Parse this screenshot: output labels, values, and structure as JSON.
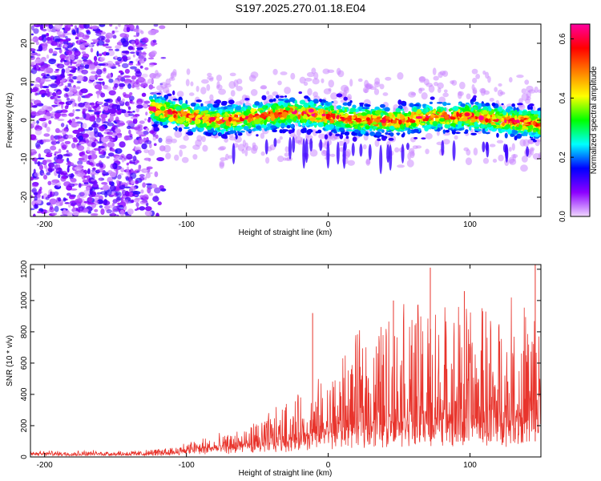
{
  "title": "S197.2025.270.01.18.E04",
  "chart_data": [
    {
      "type": "heatmap",
      "name": "spectrogram",
      "xlabel": "Height of straight line (km)",
      "ylabel": "Frequency (Hz)",
      "xlim": [
        -210,
        150
      ],
      "ylim": [
        -25,
        25
      ],
      "xticks": [
        -200,
        -100,
        0,
        100
      ],
      "yticks": [
        -20,
        -10,
        0,
        10,
        20
      ],
      "colorbar": {
        "label": "Normalized spectral amplitude",
        "range": [
          0.0,
          0.65
        ],
        "ticks": [
          0.0,
          0.2,
          0.4,
          0.6
        ],
        "colors": [
          "#f0d8ff",
          "#8c00ff",
          "#0000ff",
          "#00ffff",
          "#00ff00",
          "#ffff00",
          "#ff8000",
          "#ff0000",
          "#ff00a0"
        ]
      },
      "noise_region_km": [
        -210,
        -125
      ],
      "signal_band": {
        "start_km": -125,
        "center_hz": [
          {
            "x": -125,
            "y": 3
          },
          {
            "x": -100,
            "y": 1
          },
          {
            "x": -75,
            "y": 0
          },
          {
            "x": -50,
            "y": 1
          },
          {
            "x": -25,
            "y": 2
          },
          {
            "x": 0,
            "y": 1
          },
          {
            "x": 25,
            "y": 0
          },
          {
            "x": 50,
            "y": 0
          },
          {
            "x": 75,
            "y": 1
          },
          {
            "x": 100,
            "y": 1
          },
          {
            "x": 125,
            "y": 0
          },
          {
            "x": 150,
            "y": -1
          }
        ],
        "half_width_hz": 6
      },
      "peaks": [
        {
          "x": -12,
          "y": 2.5,
          "value": 0.65
        },
        {
          "x": 98,
          "y": 1.5,
          "value": 0.6
        }
      ]
    },
    {
      "type": "line",
      "name": "snr",
      "xlabel": "Height of straight line (km)",
      "ylabel": "SNR (10 * v/v)",
      "xlim": [
        -210,
        150
      ],
      "ylim": [
        0,
        1230
      ],
      "xticks": [
        -200,
        -100,
        0,
        100
      ],
      "yticks": [
        0,
        200,
        400,
        600,
        800,
        1000,
        1200
      ],
      "color": "#e8342c",
      "envelope": [
        {
          "x": -210,
          "base": 20,
          "peak": 40
        },
        {
          "x": -130,
          "base": 20,
          "peak": 45
        },
        {
          "x": -110,
          "base": 30,
          "peak": 70
        },
        {
          "x": -90,
          "base": 50,
          "peak": 130
        },
        {
          "x": -70,
          "base": 60,
          "peak": 150
        },
        {
          "x": -50,
          "base": 80,
          "peak": 250
        },
        {
          "x": -30,
          "base": 100,
          "peak": 350
        },
        {
          "x": -15,
          "base": 120,
          "peak": 450
        },
        {
          "x": 0,
          "base": 150,
          "peak": 550
        },
        {
          "x": 20,
          "base": 180,
          "peak": 800
        },
        {
          "x": 50,
          "base": 200,
          "peak": 1000
        },
        {
          "x": 80,
          "base": 200,
          "peak": 1050
        },
        {
          "x": 110,
          "base": 200,
          "peak": 1000
        },
        {
          "x": 150,
          "base": 200,
          "peak": 1050
        }
      ],
      "spikes": [
        {
          "x": -11,
          "y": 920
        },
        {
          "x": 46,
          "y": 1000
        },
        {
          "x": 72,
          "y": 1210
        },
        {
          "x": 96,
          "y": 1060
        },
        {
          "x": 146,
          "y": 1230
        }
      ]
    }
  ]
}
